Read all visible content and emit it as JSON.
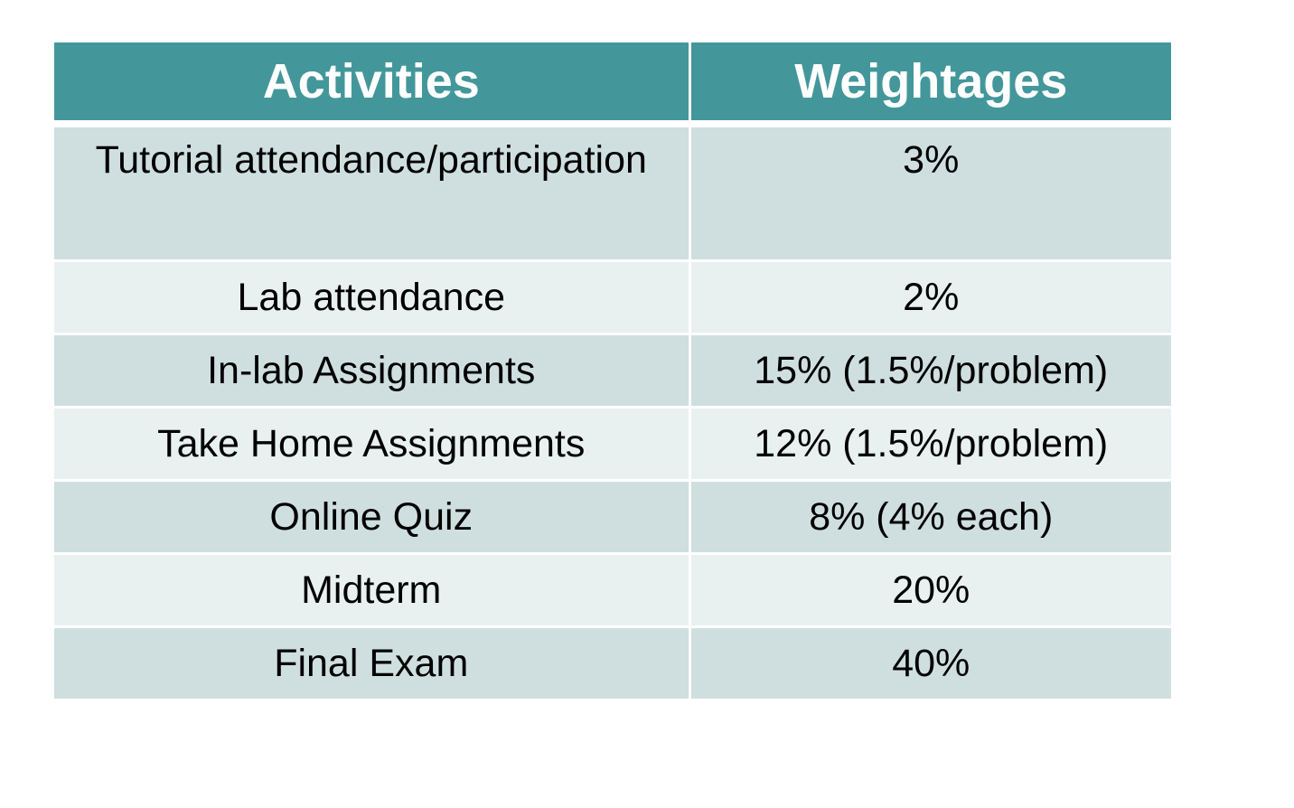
{
  "table": {
    "headers": [
      "Activities",
      "Weightages"
    ],
    "rows": [
      {
        "activity": "Tutorial attendance/participation",
        "weight": "3%"
      },
      {
        "activity": "Lab attendance",
        "weight": "2%"
      },
      {
        "activity": "In-lab Assignments",
        "weight": "15% (1.5%/problem)"
      },
      {
        "activity": "Take Home Assignments",
        "weight": "12% (1.5%/problem)"
      },
      {
        "activity": "Online Quiz",
        "weight": "8% (4% each)"
      },
      {
        "activity": "Midterm",
        "weight": "20%"
      },
      {
        "activity": "Final Exam",
        "weight": "40%"
      }
    ]
  },
  "colors": {
    "header_bg": "#43979a",
    "row_dark": "#cfdfe0",
    "row_light": "#e8f0f0"
  }
}
